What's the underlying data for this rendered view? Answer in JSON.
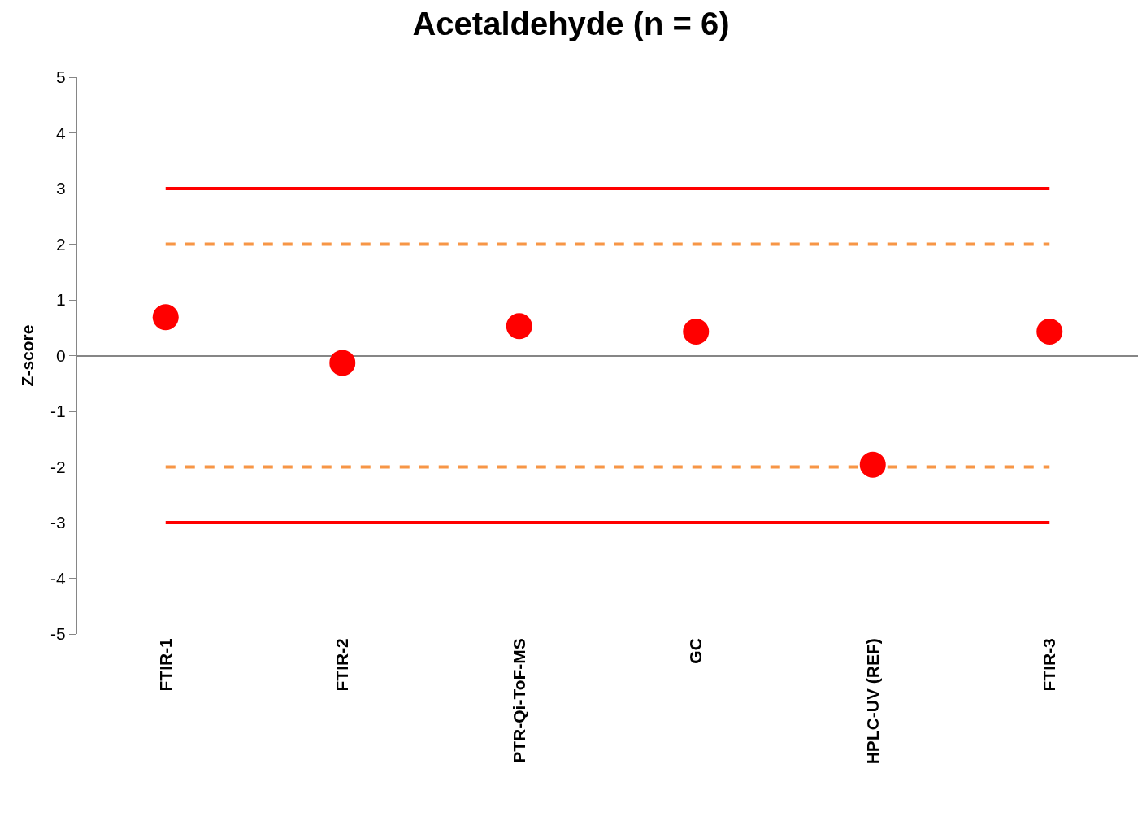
{
  "chart_data": {
    "type": "scatter",
    "title": "Acetaldehyde (n = 6)",
    "ylabel": "Z-score",
    "categories": [
      "FTIR-1",
      "FTIR-2",
      "PTR-Qi-ToF-MS",
      "GC",
      "HPLC-UV (REF)",
      "FTIR-3"
    ],
    "series": [
      {
        "color": "#ff0000",
        "values": [
          0.69,
          -0.13,
          0.53,
          0.43,
          -1.96,
          0.43
        ]
      }
    ],
    "marker": "circle",
    "ylim": [
      -5,
      5
    ],
    "yticks": [
      -5,
      -4,
      -3,
      -2,
      -1,
      0,
      1,
      2,
      3,
      4,
      5
    ],
    "ref_lines": [
      {
        "axis": "y",
        "value": 3,
        "color": "#ff0000",
        "line_style": "solid"
      },
      {
        "axis": "y",
        "value": 2,
        "color": "#f79646",
        "line_style": "dashed"
      },
      {
        "axis": "y",
        "value": -2,
        "color": "#f79646",
        "line_style": "dashed"
      },
      {
        "axis": "y",
        "value": -3,
        "color": "#ff0000",
        "line_style": "solid"
      }
    ]
  }
}
